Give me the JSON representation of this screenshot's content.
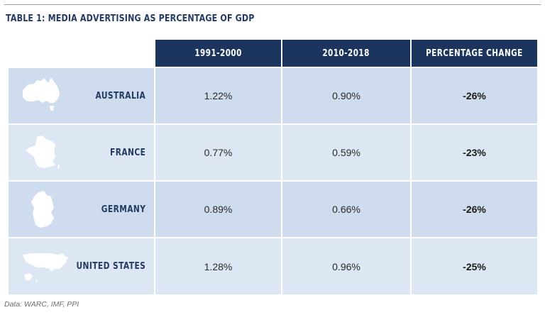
{
  "title": "TABLE 1: MEDIA ADVERTISING AS PERCENTAGE OF GDP",
  "columns": [
    "1991-2000",
    "2010-2018",
    "PERCENTAGE CHANGE"
  ],
  "rows": [
    {
      "country": "AUSTRALIA",
      "icon": "australia-map-icon",
      "v1": "1.22%",
      "v2": "0.90%",
      "change": "-26%"
    },
    {
      "country": "FRANCE",
      "icon": "france-map-icon",
      "v1": "0.77%",
      "v2": "0.59%",
      "change": "-23%"
    },
    {
      "country": "GERMANY",
      "icon": "germany-map-icon",
      "v1": "0.89%",
      "v2": "0.66%",
      "change": "-26%"
    },
    {
      "country": "UNITED STATES",
      "icon": "united-states-map-icon",
      "v1": "1.28%",
      "v2": "0.96%",
      "change": "-25%"
    }
  ],
  "source": "Data: WARC, IMF, PPI",
  "colors": {
    "header_bg": "#1b355f",
    "row_dark": "#cfdcee",
    "row_light": "#dde6f3",
    "accent_text": "#243a63"
  }
}
